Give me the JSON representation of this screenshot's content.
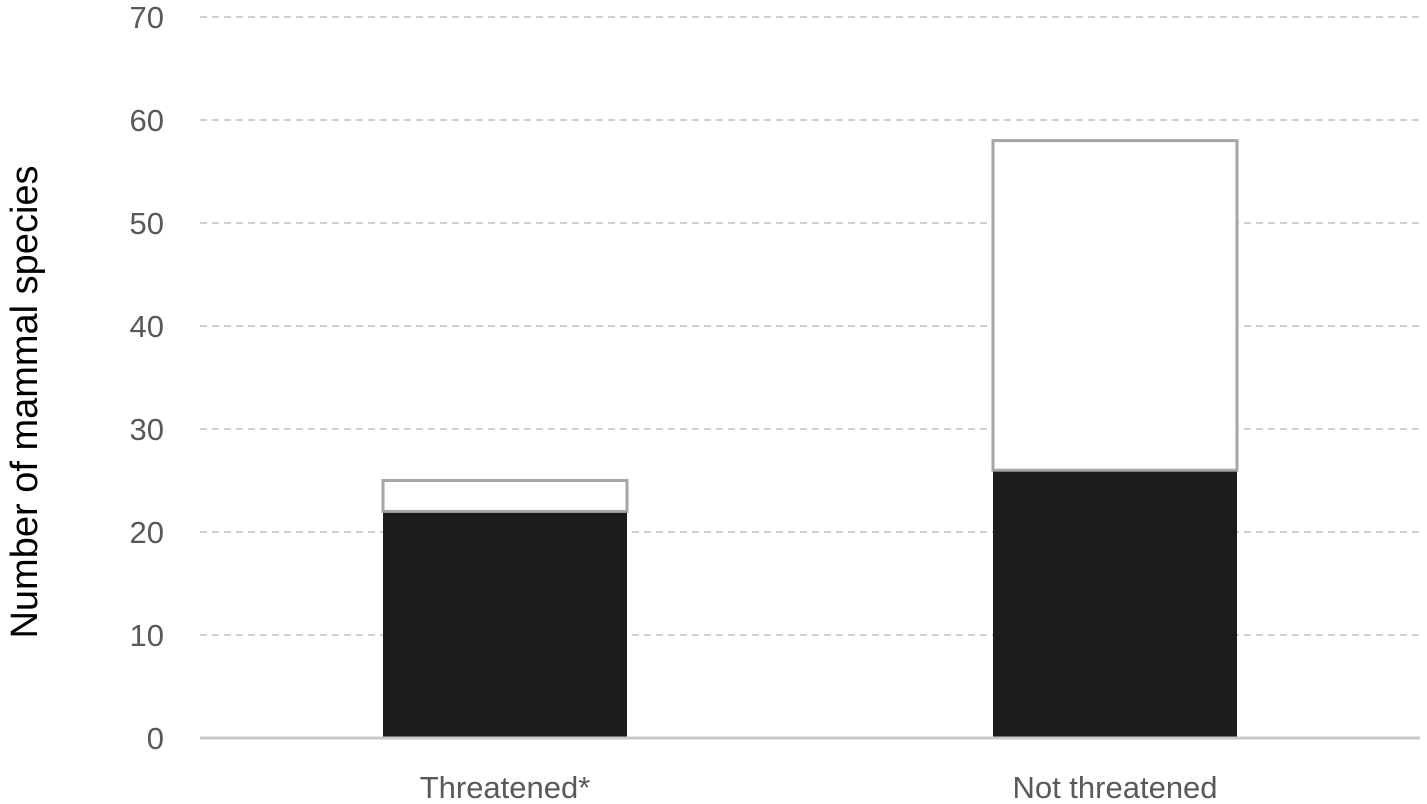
{
  "chart_data": {
    "type": "bar",
    "stacked": true,
    "title": "",
    "xlabel": "",
    "ylabel": "Number of mammal species",
    "categories": [
      "Threatened*",
      "Not threatened"
    ],
    "series": [
      {
        "values": [
          22,
          26
        ],
        "color": "#1c1c1c"
      },
      {
        "values": [
          3,
          32
        ],
        "color": "#ffffff",
        "stroke": "#a6a6a6"
      }
    ],
    "ylim": [
      0,
      70
    ],
    "yticks": [
      0,
      10,
      20,
      30,
      40,
      50,
      60,
      70
    ],
    "grid": true,
    "grid_color": "#d0d0d0",
    "legend": "none"
  }
}
